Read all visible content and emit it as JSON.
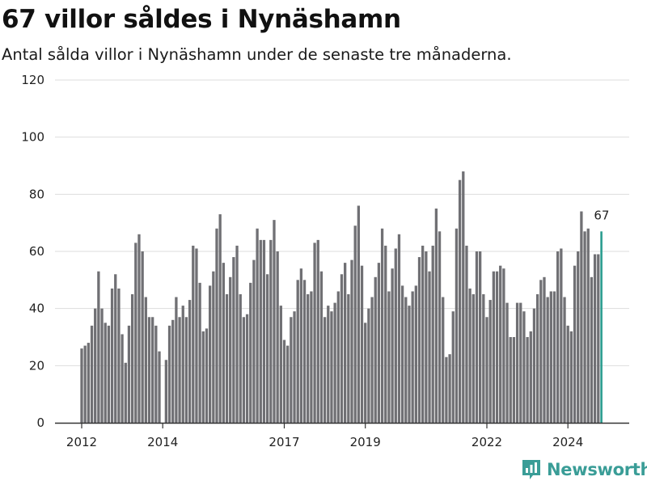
{
  "title": "67 villor såldes i Nynäshamn",
  "subtitle": "Antal sålda villor i Nynäshamn under de senaste tre månaderna.",
  "brand": {
    "name": "Newsworthy",
    "icon": "newsworthy-logo-icon"
  },
  "colors": {
    "bar": "#707074",
    "highlight": "#2a9d8f",
    "grid": "#dddddd",
    "axis": "#333333"
  },
  "chart_data": {
    "type": "bar",
    "title": "67 villor såldes i Nynäshamn",
    "ylim": [
      0,
      120
    ],
    "y_ticks": [
      "0",
      "20",
      "40",
      "60",
      "80",
      "100",
      "120"
    ],
    "x_ticks": [
      "2012",
      "2014",
      "2017",
      "2019",
      "2022",
      "2024"
    ],
    "x_tick_index": [
      0,
      24,
      60,
      84,
      120,
      144
    ],
    "highlight_label": "67",
    "grid": true,
    "values": [
      26,
      27,
      28,
      34,
      40,
      53,
      40,
      35,
      34,
      47,
      52,
      47,
      31,
      21,
      34,
      45,
      63,
      66,
      60,
      44,
      37,
      37,
      34,
      25,
      0,
      22,
      34,
      36,
      44,
      37,
      41,
      37,
      43,
      62,
      61,
      49,
      32,
      33,
      48,
      53,
      68,
      73,
      56,
      45,
      51,
      58,
      62,
      45,
      37,
      38,
      49,
      57,
      68,
      64,
      64,
      52,
      64,
      71,
      60,
      41,
      29,
      27,
      37,
      39,
      50,
      54,
      50,
      45,
      46,
      63,
      64,
      53,
      37,
      41,
      39,
      42,
      46,
      52,
      56,
      45,
      57,
      69,
      76,
      55,
      35,
      40,
      44,
      51,
      56,
      68,
      62,
      46,
      54,
      61,
      66,
      48,
      44,
      41,
      46,
      48,
      58,
      62,
      60,
      53,
      62,
      75,
      67,
      44,
      23,
      24,
      39,
      68,
      85,
      88,
      62,
      47,
      45,
      60,
      60,
      45,
      37,
      43,
      53,
      53,
      55,
      54,
      42,
      30,
      30,
      42,
      42,
      39,
      30,
      32,
      40,
      45,
      50,
      51,
      44,
      46,
      46,
      60,
      61,
      44,
      34,
      32,
      55,
      60,
      74,
      67,
      68,
      51,
      59,
      59,
      67
    ]
  }
}
